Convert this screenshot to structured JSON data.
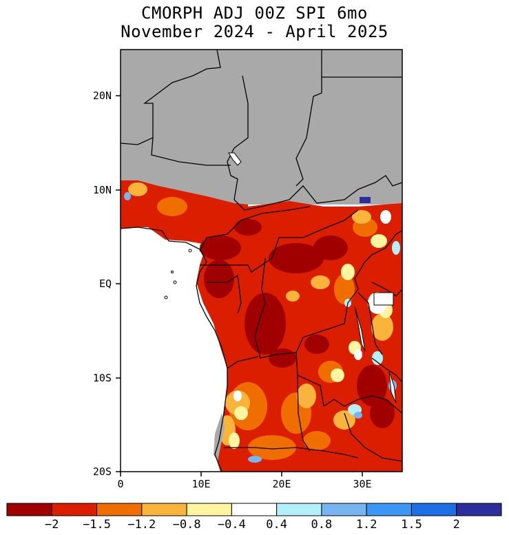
{
  "title": {
    "line1": "CMORPH ADJ 00Z SPI 6mo",
    "line2": "November 2024 - April 2025"
  },
  "map": {
    "region": "Central Africa",
    "x_ticks": [
      "0",
      "10E",
      "20E",
      "30E"
    ],
    "y_ticks": [
      "20N",
      "10N",
      "EQ",
      "10S",
      "20S"
    ],
    "no_data_color": "#a9a9a9",
    "ocean_color": "#ffffff"
  },
  "colorbar": {
    "colors": [
      "#a00000",
      "#dc1e00",
      "#f06e00",
      "#fab43c",
      "#fff5a0",
      "#ffffff",
      "#b4f0fa",
      "#78b4f0",
      "#3c96f5",
      "#1e6ee6",
      "#2d2d9b"
    ],
    "labels": [
      "-2",
      "-1.5",
      "-1.2",
      "-0.8",
      "-0.4",
      "0.4",
      "0.8",
      "1.2",
      "1.5",
      "2"
    ]
  }
}
